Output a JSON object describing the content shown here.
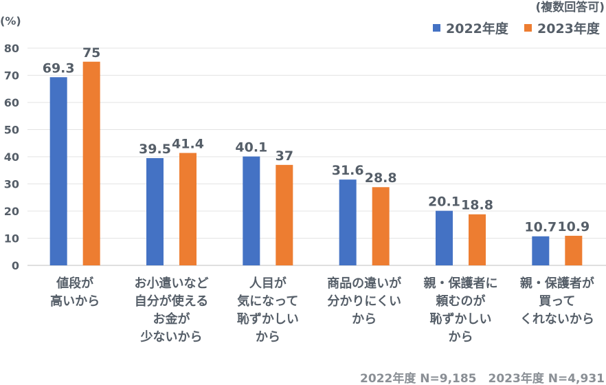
{
  "chart_data": {
    "type": "bar",
    "unit_label": "(%)",
    "note": "(複数回答可)",
    "categories": [
      [
        "値段が",
        "高いから"
      ],
      [
        "お小遣いなど",
        "自分が使える",
        "お金が",
        "少ないから"
      ],
      [
        "人目が",
        "気になって",
        "恥ずかしい",
        "から"
      ],
      [
        "商品の違いが",
        "分かりにくい",
        "から"
      ],
      [
        "親・保護者に",
        "頼むのが",
        "恥ずかしい",
        "から"
      ],
      [
        "親・保護者が",
        "買って",
        "くれないから"
      ]
    ],
    "series": [
      {
        "name": "2022年度",
        "color": "#4472c4",
        "values": [
          69.3,
          39.5,
          40.1,
          31.6,
          20.1,
          10.7
        ],
        "labels": [
          "69.3",
          "39.5",
          "40.1",
          "31.6",
          "20.1",
          "10.7"
        ]
      },
      {
        "name": "2023年度",
        "color": "#ed7d31",
        "values": [
          75,
          41.4,
          37,
          28.8,
          18.8,
          10.9
        ],
        "labels": [
          "75",
          "41.4",
          "37",
          "28.8",
          "18.8",
          "10.9"
        ]
      }
    ],
    "ylim": [
      0,
      80
    ],
    "yticks": [
      "0",
      "10",
      "20",
      "30",
      "40",
      "50",
      "60",
      "70",
      "80"
    ],
    "grid": true,
    "legend_position": "top-right",
    "footnote": "2022年度 N=9,185　2023年度 N=4,931"
  }
}
